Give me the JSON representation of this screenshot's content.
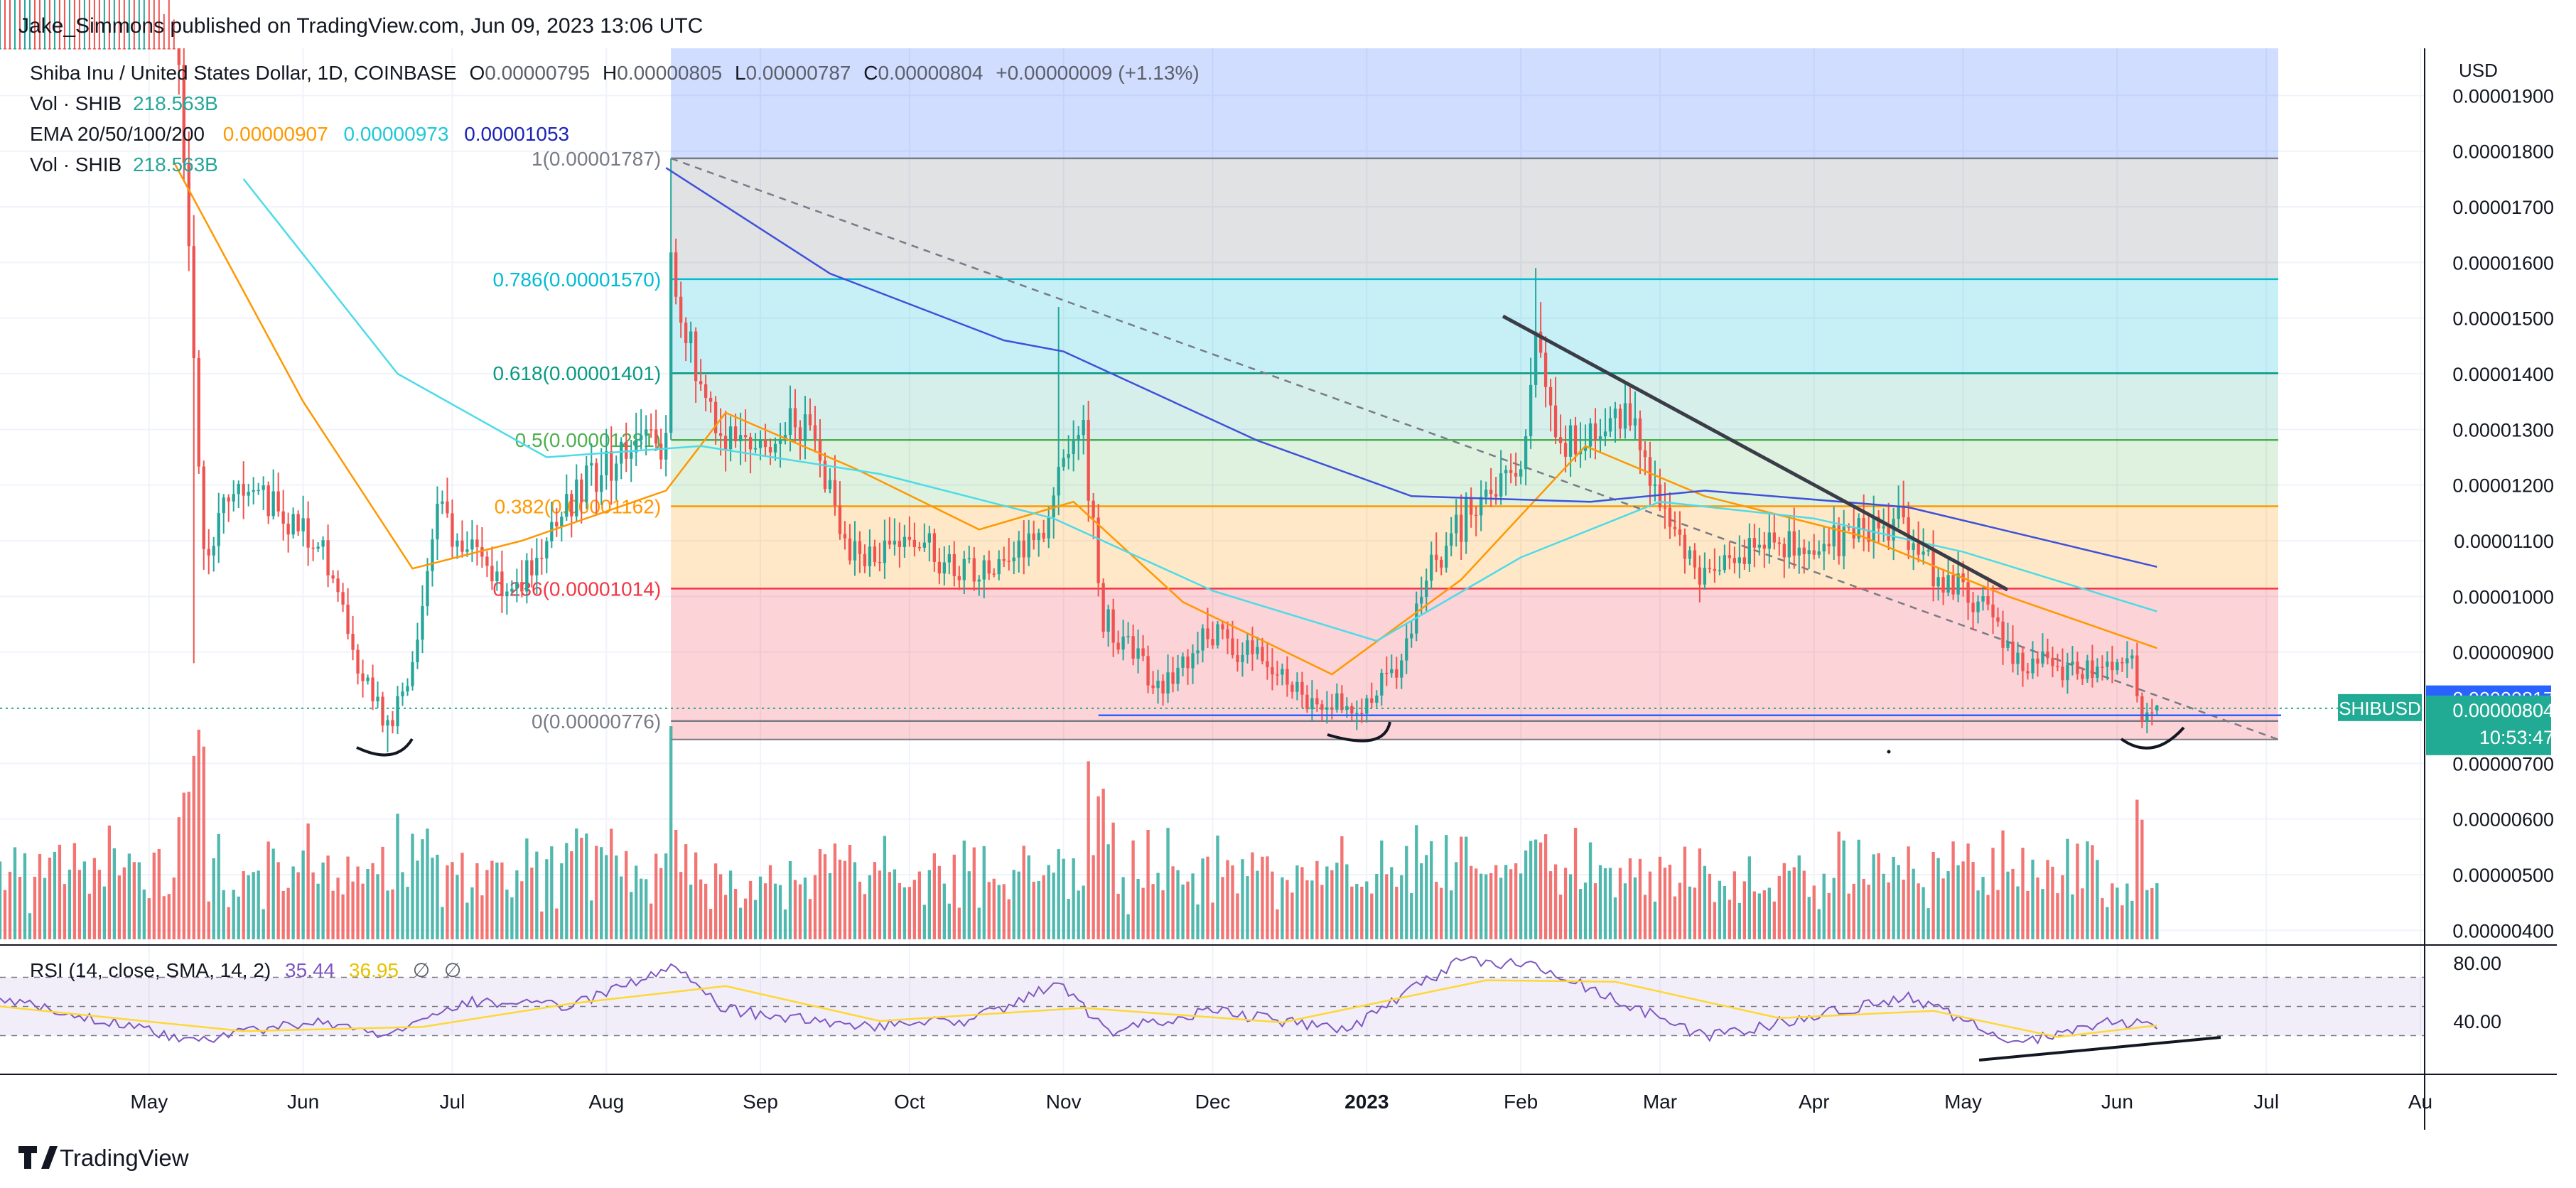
{
  "header": {
    "publisher": "Jake_Simmons published on TradingView.com, Jun 09, 2023 13:06 UTC"
  },
  "legend": {
    "symbol": "Shiba Inu / United States Dollar, 1D, COINBASE",
    "ohlc": [
      {
        "key": "O",
        "value": "0.00000795"
      },
      {
        "key": "H",
        "value": "0.00000805"
      },
      {
        "key": "L",
        "value": "0.00000787"
      },
      {
        "key": "C",
        "value": "0.00000804"
      }
    ],
    "change": "+0.00000009 (+1.13%)",
    "vol1_label": "Vol · SHIB",
    "vol1_value": "218.563B",
    "ema_label": "EMA 20/50/100/200",
    "ema_values": [
      "0.00000907",
      "0.00000973",
      "0.00001053"
    ],
    "vol2_label": "Vol · SHIB",
    "vol2_value": "218.563B"
  },
  "fib_labels": [
    {
      "level": 1,
      "price": 1.787e-05,
      "text": "1(0.00001787)"
    },
    {
      "level": 0.786,
      "price": 1.57e-05,
      "text": "0.786(0.00001570)"
    },
    {
      "level": 0.618,
      "price": 1.401e-05,
      "text": "0.618(0.00001401)"
    },
    {
      "level": 0.5,
      "price": 1.281e-05,
      "text": "0.5(0.00001281)"
    },
    {
      "level": 0.382,
      "price": 1.162e-05,
      "text": "0.382(0.00001162)"
    },
    {
      "level": 0.236,
      "price": 1.014e-05,
      "text": "0.236(0.00001014)"
    },
    {
      "level": 0,
      "price": 7.76e-06,
      "text": "0(0.00000776)"
    }
  ],
  "price_axis": {
    "unit": "USD",
    "ticks": [
      "0.00001900",
      "0.00001800",
      "0.00001700",
      "0.00001600",
      "0.00001500",
      "0.00001400",
      "0.00001300",
      "0.00001200",
      "0.00001100",
      "0.00001000",
      "0.00000900",
      "0.00000700",
      "0.00000600",
      "0.00000500",
      "0.00000400"
    ],
    "tag_high": "0.00000817",
    "tag_last": "0.00000804",
    "tag_timer": "10:53:47",
    "symbol_tag": "SHIBUSD"
  },
  "time_axis": {
    "labels": [
      "May",
      "Jun",
      "Jul",
      "Aug",
      "Sep",
      "Oct",
      "Nov",
      "Dec",
      "2023",
      "Feb",
      "Mar",
      "Apr",
      "May",
      "Jun",
      "Jul",
      "Au"
    ]
  },
  "rsi": {
    "label": "RSI (14, close, SMA, 14, 2)",
    "value": "35.44",
    "sma_value": "36.95",
    "extra_1": "∅",
    "extra_2": "∅",
    "ticks": [
      "80.00",
      "40.00"
    ]
  },
  "footer": {
    "brand": "TradingView"
  },
  "colors": {
    "up": "#26a69a",
    "down": "#ef5350",
    "ema20": "#ff9800",
    "ema50": "#4ddbe8",
    "ema100": "#3f51d8",
    "fib_0_236": "#f23645",
    "fib_0_382": "#ff9800",
    "fib_0_5": "#4caf50",
    "fib_0_618": "#089981",
    "fib_0_786": "#00bcd4",
    "fib_1": "#787b86",
    "rsi": "#7e57c2",
    "rsi_sma": "#fdd835",
    "price_tag_blue": "#2962ff",
    "symbol_tag_teal": "#22ab94"
  },
  "chart_data": [
    {
      "type": "candlestick",
      "title": "Shiba Inu / United States Dollar, 1D, COINBASE",
      "xlabel": "",
      "ylabel": "USD",
      "x_range": [
        "2022-04-01",
        "2023-08-01"
      ],
      "ylim": [
        3.7e-06,
        1.95e-05
      ],
      "grid": true,
      "ohlc_last": {
        "date": "2023-06-09",
        "open": 7.95e-06,
        "high": 8.05e-06,
        "low": 7.87e-06,
        "close": 8.04e-06
      },
      "close_path": [
        {
          "x": "2022-04-01",
          "y": 2.68e-05
        },
        {
          "x": "2022-04-20",
          "y": 2.45e-05
        },
        {
          "x": "2022-05-06",
          "y": 2.05e-05
        },
        {
          "x": "2022-05-10",
          "y": 1.45e-05
        },
        {
          "x": "2022-05-12",
          "y": 1.08e-05
        },
        {
          "x": "2022-05-20",
          "y": 1.21e-05
        },
        {
          "x": "2022-06-05",
          "y": 1.08e-05
        },
        {
          "x": "2022-06-13",
          "y": 8.6e-06
        },
        {
          "x": "2022-06-18",
          "y": 7.6e-06
        },
        {
          "x": "2022-06-23",
          "y": 8.8e-06
        },
        {
          "x": "2022-06-28",
          "y": 1.15e-05
        },
        {
          "x": "2022-07-13",
          "y": 1.01e-05
        },
        {
          "x": "2022-07-29",
          "y": 1.22e-05
        },
        {
          "x": "2022-08-13",
          "y": 1.28e-05
        },
        {
          "x": "2022-08-14",
          "y": 1.59e-05
        },
        {
          "x": "2022-08-20",
          "y": 1.36e-05
        },
        {
          "x": "2022-08-27",
          "y": 1.26e-05
        },
        {
          "x": "2022-09-10",
          "y": 1.31e-05
        },
        {
          "x": "2022-09-20",
          "y": 1.07e-05
        },
        {
          "x": "2022-10-02",
          "y": 1.1e-05
        },
        {
          "x": "2022-10-13",
          "y": 1.04e-05
        },
        {
          "x": "2022-10-28",
          "y": 1.1e-05
        },
        {
          "x": "2022-10-31",
          "y": 1.27e-05
        },
        {
          "x": "2022-11-05",
          "y": 1.28e-05
        },
        {
          "x": "2022-11-09",
          "y": 9.6e-06
        },
        {
          "x": "2022-11-20",
          "y": 8.4e-06
        },
        {
          "x": "2022-12-01",
          "y": 9.4e-06
        },
        {
          "x": "2022-12-20",
          "y": 8.2e-06
        },
        {
          "x": "2022-12-30",
          "y": 8e-06
        },
        {
          "x": "2023-01-08",
          "y": 8.9e-06
        },
        {
          "x": "2023-01-15",
          "y": 1.07e-05
        },
        {
          "x": "2023-01-24",
          "y": 1.18e-05
        },
        {
          "x": "2023-02-01",
          "y": 1.21e-05
        },
        {
          "x": "2023-02-04",
          "y": 1.47e-05
        },
        {
          "x": "2023-02-09",
          "y": 1.28e-05
        },
        {
          "x": "2023-02-22",
          "y": 1.33e-05
        },
        {
          "x": "2023-03-01",
          "y": 1.17e-05
        },
        {
          "x": "2023-03-09",
          "y": 1.02e-05
        },
        {
          "x": "2023-03-20",
          "y": 1.09e-05
        },
        {
          "x": "2023-04-05",
          "y": 1.1e-05
        },
        {
          "x": "2023-04-18",
          "y": 1.14e-05
        },
        {
          "x": "2023-04-25",
          "y": 1.04e-05
        },
        {
          "x": "2023-05-05",
          "y": 9.9e-06
        },
        {
          "x": "2023-05-11",
          "y": 8.8e-06
        },
        {
          "x": "2023-05-25",
          "y": 8.7e-06
        },
        {
          "x": "2023-06-04",
          "y": 8.7e-06
        },
        {
          "x": "2023-06-06",
          "y": 7.9e-06
        },
        {
          "x": "2023-06-09",
          "y": 8.04e-06
        }
      ],
      "ema_series": [
        {
          "name": "EMA 20",
          "last": 9.07e-06,
          "points": [
            {
              "x": "2022-05-06",
              "y": 1.78e-05
            },
            {
              "x": "2022-06-01",
              "y": 1.35e-05
            },
            {
              "x": "2022-06-23",
              "y": 1.05e-05
            },
            {
              "x": "2022-07-15",
              "y": 1.1e-05
            },
            {
              "x": "2022-08-13",
              "y": 1.19e-05
            },
            {
              "x": "2022-08-25",
              "y": 1.33e-05
            },
            {
              "x": "2022-09-20",
              "y": 1.23e-05
            },
            {
              "x": "2022-10-15",
              "y": 1.12e-05
            },
            {
              "x": "2022-11-03",
              "y": 1.17e-05
            },
            {
              "x": "2022-11-25",
              "y": 9.9e-06
            },
            {
              "x": "2022-12-25",
              "y": 8.6e-06
            },
            {
              "x": "2023-01-20",
              "y": 1.03e-05
            },
            {
              "x": "2023-02-14",
              "y": 1.27e-05
            },
            {
              "x": "2023-03-10",
              "y": 1.18e-05
            },
            {
              "x": "2023-04-10",
              "y": 1.11e-05
            },
            {
              "x": "2023-05-10",
              "y": 1e-05
            },
            {
              "x": "2023-06-09",
              "y": 9.07e-06
            }
          ]
        },
        {
          "name": "EMA 50",
          "last": 9.73e-06,
          "points": [
            {
              "x": "2022-05-20",
              "y": 1.75e-05
            },
            {
              "x": "2022-06-20",
              "y": 1.4e-05
            },
            {
              "x": "2022-07-20",
              "y": 1.25e-05
            },
            {
              "x": "2022-08-20",
              "y": 1.27e-05
            },
            {
              "x": "2022-09-25",
              "y": 1.22e-05
            },
            {
              "x": "2022-10-30",
              "y": 1.14e-05
            },
            {
              "x": "2022-12-01",
              "y": 1.01e-05
            },
            {
              "x": "2023-01-03",
              "y": 9.2e-06
            },
            {
              "x": "2023-02-01",
              "y": 1.07e-05
            },
            {
              "x": "2023-03-01",
              "y": 1.17e-05
            },
            {
              "x": "2023-04-01",
              "y": 1.14e-05
            },
            {
              "x": "2023-05-01",
              "y": 1.08e-05
            },
            {
              "x": "2023-06-09",
              "y": 9.73e-06
            }
          ]
        },
        {
          "name": "EMA 100",
          "last": 1.053e-05,
          "points": [
            {
              "x": "2022-08-13",
              "y": 1.77e-05
            },
            {
              "x": "2022-09-15",
              "y": 1.58e-05
            },
            {
              "x": "2022-10-20",
              "y": 1.46e-05
            },
            {
              "x": "2022-11-01",
              "y": 1.44e-05
            },
            {
              "x": "2022-12-10",
              "y": 1.28e-05
            },
            {
              "x": "2023-01-10",
              "y": 1.18e-05
            },
            {
              "x": "2023-02-15",
              "y": 1.17e-05
            },
            {
              "x": "2023-03-10",
              "y": 1.19e-05
            },
            {
              "x": "2023-04-20",
              "y": 1.16e-05
            },
            {
              "x": "2023-06-09",
              "y": 1.053e-05
            }
          ]
        }
      ]
    },
    {
      "type": "bar",
      "title": "Vol · SHIB",
      "last_value": "218.563B",
      "note": "Daily volume histogram; heights are relative (no scale printed)."
    },
    {
      "type": "line",
      "title": "RSI (14, close, SMA, 14, 2)",
      "ylim": [
        15,
        85
      ],
      "bands": [
        30,
        50,
        70
      ],
      "series": [
        {
          "name": "RSI",
          "last": 35.44,
          "points": [
            {
              "x": "2022-04-01",
              "y": 55
            },
            {
              "x": "2022-05-10",
              "y": 26
            },
            {
              "x": "2022-06-05",
              "y": 40
            },
            {
              "x": "2022-06-18",
              "y": 29
            },
            {
              "x": "2022-07-05",
              "y": 53
            },
            {
              "x": "2022-07-25",
              "y": 50
            },
            {
              "x": "2022-08-14",
              "y": 78
            },
            {
              "x": "2022-08-25",
              "y": 48
            },
            {
              "x": "2022-09-20",
              "y": 36
            },
            {
              "x": "2022-10-13",
              "y": 40
            },
            {
              "x": "2022-10-31",
              "y": 65
            },
            {
              "x": "2022-11-10",
              "y": 33
            },
            {
              "x": "2022-12-01",
              "y": 47
            },
            {
              "x": "2022-12-28",
              "y": 33
            },
            {
              "x": "2023-01-20",
              "y": 82
            },
            {
              "x": "2023-02-04",
              "y": 78
            },
            {
              "x": "2023-02-20",
              "y": 55
            },
            {
              "x": "2023-03-10",
              "y": 29
            },
            {
              "x": "2023-04-20",
              "y": 56
            },
            {
              "x": "2023-05-12",
              "y": 25
            },
            {
              "x": "2023-06-01",
              "y": 40
            },
            {
              "x": "2023-06-09",
              "y": 35.44
            }
          ]
        },
        {
          "name": "RSI-based MA",
          "last": 36.95,
          "points": [
            {
              "x": "2022-04-01",
              "y": 50
            },
            {
              "x": "2022-05-20",
              "y": 33
            },
            {
              "x": "2022-06-25",
              "y": 36
            },
            {
              "x": "2022-07-25",
              "y": 52
            },
            {
              "x": "2022-08-25",
              "y": 64
            },
            {
              "x": "2022-09-25",
              "y": 40
            },
            {
              "x": "2022-11-05",
              "y": 49
            },
            {
              "x": "2022-12-15",
              "y": 39
            },
            {
              "x": "2023-01-25",
              "y": 68
            },
            {
              "x": "2023-02-20",
              "y": 67
            },
            {
              "x": "2023-03-25",
              "y": 42
            },
            {
              "x": "2023-04-25",
              "y": 47
            },
            {
              "x": "2023-05-20",
              "y": 29
            },
            {
              "x": "2023-06-09",
              "y": 36.95
            }
          ]
        }
      ]
    }
  ]
}
